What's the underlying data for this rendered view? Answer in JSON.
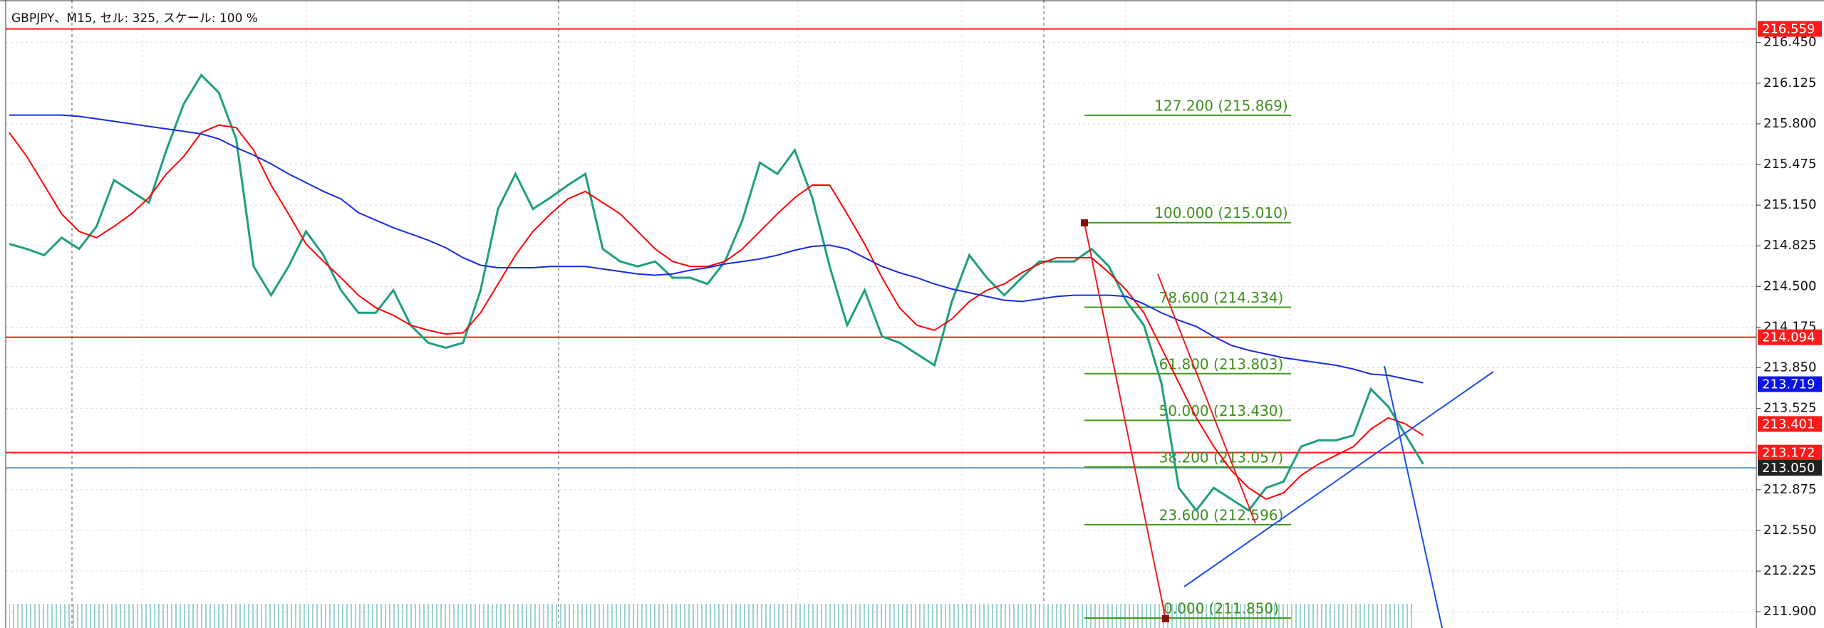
{
  "chart_data": {
    "type": "line",
    "title": "GBPJPY、M15, セル: 325, スケール: 100 %",
    "ylim": [
      211.77,
      216.79
    ],
    "yticks": [
      {
        "value": 216.45,
        "label": "216.450"
      },
      216.125,
      {
        "value": 215.8,
        "label": "215.800"
      },
      215.475,
      {
        "value": 215.15,
        "label": "215.150"
      },
      214.825,
      {
        "value": 214.5,
        "label": "214.500"
      },
      214.175,
      {
        "value": 213.85,
        "label": "213.850"
      },
      213.525,
      212.875,
      {
        "value": 212.55,
        "label": "212.550"
      },
      212.225,
      {
        "value": 211.9,
        "label": "211.900"
      }
    ],
    "grid": true,
    "series": [
      {
        "color": "#1e9e80",
        "values": [
          214.84,
          214.8,
          214.75,
          214.89,
          214.8,
          214.98,
          215.35,
          215.26,
          215.17,
          215.59,
          215.96,
          216.19,
          216.05,
          215.68,
          214.66,
          214.43,
          214.66,
          214.94,
          214.75,
          214.47,
          214.29,
          214.29,
          214.47,
          214.19,
          214.05,
          214.01,
          214.05,
          214.47,
          215.12,
          215.4,
          215.12,
          215.21,
          215.31,
          215.4,
          214.8,
          214.7,
          214.66,
          214.7,
          214.57,
          214.57,
          214.52,
          214.7,
          215.03,
          215.49,
          215.4,
          215.59,
          215.21,
          214.66,
          214.19,
          214.47,
          214.1,
          214.05,
          213.96,
          213.87,
          214.38,
          214.75,
          214.57,
          214.43,
          214.57,
          214.7,
          214.7,
          214.7,
          214.8,
          214.66,
          214.38,
          214.19,
          213.73,
          212.89,
          212.71,
          212.89,
          212.8,
          212.71,
          212.89,
          212.94,
          213.22,
          213.27,
          213.27,
          213.31,
          213.68,
          213.54,
          213.31,
          213.08
        ]
      },
      {
        "color": "#ff0000",
        "values": [
          215.73,
          215.54,
          215.31,
          215.08,
          214.94,
          214.89,
          214.98,
          215.08,
          215.21,
          215.4,
          215.54,
          215.73,
          215.79,
          215.77,
          215.59,
          215.31,
          215.08,
          214.84,
          214.7,
          214.57,
          214.43,
          214.33,
          214.27,
          214.19,
          214.15,
          214.12,
          214.13,
          214.29,
          214.52,
          214.75,
          214.94,
          215.08,
          215.2,
          215.26,
          215.17,
          215.08,
          214.94,
          214.8,
          214.7,
          214.66,
          214.66,
          214.7,
          214.8,
          214.94,
          215.08,
          215.21,
          215.31,
          215.31,
          215.08,
          214.84,
          214.57,
          214.33,
          214.19,
          214.15,
          214.24,
          214.38,
          214.47,
          214.52,
          214.61,
          214.68,
          214.73,
          214.73,
          214.73,
          214.61,
          214.47,
          214.29,
          214.01,
          213.73,
          213.45,
          213.22,
          213.03,
          212.89,
          212.8,
          212.85,
          212.99,
          213.08,
          213.15,
          213.22,
          213.36,
          213.45,
          213.4,
          213.31
        ]
      },
      {
        "color": "#1a2be0",
        "values": [
          215.87,
          215.87,
          215.87,
          215.87,
          215.86,
          215.84,
          215.82,
          215.8,
          215.78,
          215.76,
          215.74,
          215.72,
          215.68,
          215.61,
          215.55,
          215.48,
          215.4,
          215.33,
          215.26,
          215.2,
          215.09,
          215.03,
          214.97,
          214.92,
          214.87,
          214.81,
          214.73,
          214.67,
          214.65,
          214.65,
          214.65,
          214.66,
          214.66,
          214.66,
          214.64,
          214.62,
          214.6,
          214.59,
          214.6,
          214.63,
          214.65,
          214.68,
          214.7,
          214.72,
          214.75,
          214.79,
          214.82,
          214.83,
          214.8,
          214.73,
          214.66,
          214.61,
          214.57,
          214.52,
          214.48,
          214.45,
          214.42,
          214.39,
          214.38,
          214.4,
          214.42,
          214.43,
          214.43,
          214.43,
          214.42,
          214.36,
          214.29,
          214.23,
          214.18,
          214.1,
          214.03,
          213.99,
          213.96,
          213.93,
          213.91,
          213.89,
          213.87,
          213.84,
          213.8,
          213.79,
          213.76,
          213.73
        ]
      }
    ],
    "levels": [
      {
        "value": 216.559,
        "color": "#ff1a1a",
        "line": true
      },
      {
        "value": 214.094,
        "color": "#ff1a1a",
        "line": true
      },
      {
        "value": 213.719,
        "color": "#0a14e6",
        "line": false
      },
      {
        "value": 213.401,
        "color": "#ff1a1a",
        "line": false
      },
      {
        "value": 213.172,
        "color": "#ff1a1a",
        "line": true
      },
      {
        "value": 213.05,
        "label": "213.050",
        "color": "#222222",
        "line": true,
        "line_color": "#6a9ec2"
      }
    ],
    "fibonacci": {
      "color": "#3f9a1f",
      "levels": [
        {
          "value": 215.869,
          "label": "127.200 (215.869)"
        },
        {
          "value": 215.01,
          "label": "100.000 (215.010)"
        },
        {
          "value": 214.334,
          "label": "78.600 (214.334)"
        },
        {
          "value": 213.803,
          "label": "61.800 (213.803)"
        },
        {
          "value": 213.43,
          "label": "50.000 (213.430)"
        },
        {
          "value": 213.057,
          "label": "38.200 (213.057)"
        },
        {
          "value": 212.596,
          "label": "23.600 (212.596)"
        },
        {
          "value": 211.85,
          "label": "0.000 (211.850)"
        }
      ]
    }
  }
}
